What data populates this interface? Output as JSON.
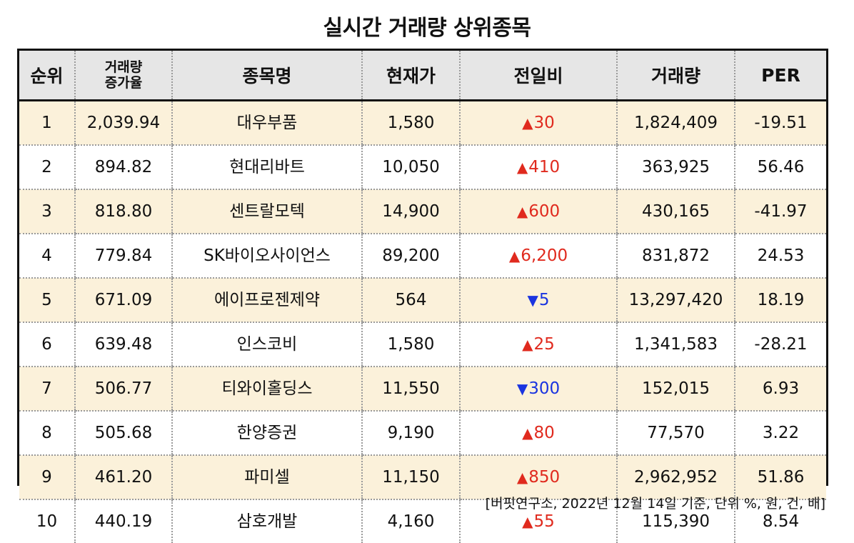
{
  "title": "실시간 거래량 상위종목",
  "headers": {
    "rank": "순위",
    "volume_growth_line1": "거래량",
    "volume_growth_line2": "증가율",
    "name": "종목명",
    "price": "현재가",
    "change": "전일비",
    "volume": "거래량",
    "per": "PER"
  },
  "rows": [
    {
      "rank": "1",
      "growth": "2,039.94",
      "name": "대우부품",
      "price": "1,580",
      "dir": "up",
      "arrow": "▲",
      "change": "30",
      "volume": "1,824,409",
      "per": "-19.51"
    },
    {
      "rank": "2",
      "growth": "894.82",
      "name": "현대리바트",
      "price": "10,050",
      "dir": "up",
      "arrow": "▲",
      "change": "410",
      "volume": "363,925",
      "per": "56.46"
    },
    {
      "rank": "3",
      "growth": "818.80",
      "name": "센트랄모텍",
      "price": "14,900",
      "dir": "up",
      "arrow": "▲",
      "change": "600",
      "volume": "430,165",
      "per": "-41.97"
    },
    {
      "rank": "4",
      "growth": "779.84",
      "name": "SK바이오사이언스",
      "price": "89,200",
      "dir": "up",
      "arrow": "▲",
      "change": "6,200",
      "volume": "831,872",
      "per": "24.53"
    },
    {
      "rank": "5",
      "growth": "671.09",
      "name": "에이프로젠제약",
      "price": "564",
      "dir": "down",
      "arrow": "▼",
      "change": "5",
      "volume": "13,297,420",
      "per": "18.19"
    },
    {
      "rank": "6",
      "growth": "639.48",
      "name": "인스코비",
      "price": "1,580",
      "dir": "up",
      "arrow": "▲",
      "change": "25",
      "volume": "1,341,583",
      "per": "-28.21"
    },
    {
      "rank": "7",
      "growth": "506.77",
      "name": "티와이홀딩스",
      "price": "11,550",
      "dir": "down",
      "arrow": "▼",
      "change": "300",
      "volume": "152,015",
      "per": "6.93"
    },
    {
      "rank": "8",
      "growth": "505.68",
      "name": "한양증권",
      "price": "9,190",
      "dir": "up",
      "arrow": "▲",
      "change": "80",
      "volume": "77,570",
      "per": "3.22"
    },
    {
      "rank": "9",
      "growth": "461.20",
      "name": "파미셀",
      "price": "11,150",
      "dir": "up",
      "arrow": "▲",
      "change": "850",
      "volume": "2,962,952",
      "per": "51.86"
    },
    {
      "rank": "10",
      "growth": "440.19",
      "name": "삼호개발",
      "price": "4,160",
      "dir": "up",
      "arrow": "▲",
      "change": "55",
      "volume": "115,390",
      "per": "8.54"
    }
  ],
  "colors": {
    "up": "#e02a1e",
    "down": "#1a34e0",
    "header_bg": "#e6e6e6",
    "odd_row_bg": "#fbf1da"
  },
  "source": "[버핏연구소, 2022년 12월 14일 기준, 단위 %, 원, 건, 배]"
}
